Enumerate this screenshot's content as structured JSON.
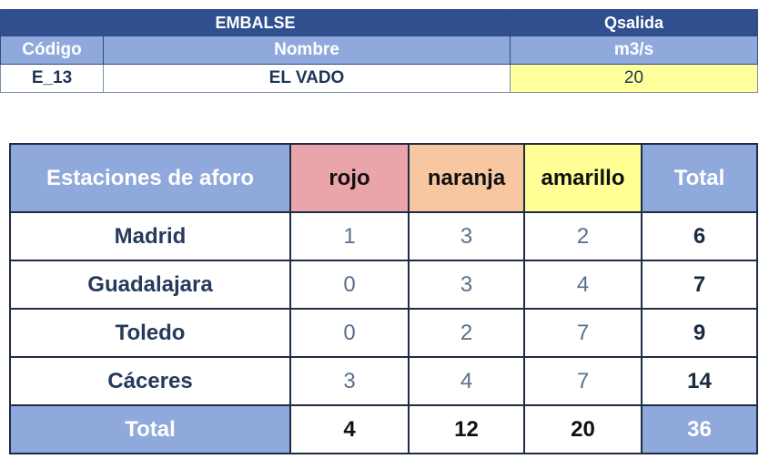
{
  "reservoir": {
    "header": {
      "embalse": "EMBALSE",
      "qsalida": "Qsalida"
    },
    "subheader": {
      "codigo": "Código",
      "nombre": "Nombre",
      "unit": "m3/s"
    },
    "row": {
      "codigo": "E_13",
      "nombre": "EL VADO",
      "qsalida": "20"
    }
  },
  "stations_table": {
    "headers": {
      "station": "Estaciones de aforo",
      "rojo": "rojo",
      "naranja": "naranja",
      "amarillo": "amarillo",
      "total": "Total"
    },
    "rows": [
      {
        "name": "Madrid",
        "rojo": "1",
        "naranja": "3",
        "amarillo": "2",
        "total": "6"
      },
      {
        "name": "Guadalajara",
        "rojo": "0",
        "naranja": "3",
        "amarillo": "4",
        "total": "7"
      },
      {
        "name": "Toledo",
        "rojo": "0",
        "naranja": "2",
        "amarillo": "7",
        "total": "9"
      },
      {
        "name": "Cáceres",
        "rojo": "3",
        "naranja": "4",
        "amarillo": "7",
        "total": "14"
      }
    ],
    "footer": {
      "label": "Total",
      "rojo": "4",
      "naranja": "12",
      "amarillo": "20",
      "total": "36"
    }
  },
  "colors": {
    "header_dark_blue": "#2f4f8f",
    "header_light_blue": "#8fa9dc",
    "highlight_yellow": "#ffff9c",
    "rojo": "#eaa5ab",
    "naranja": "#f7c7a2",
    "amarillo": "#ffff96"
  }
}
